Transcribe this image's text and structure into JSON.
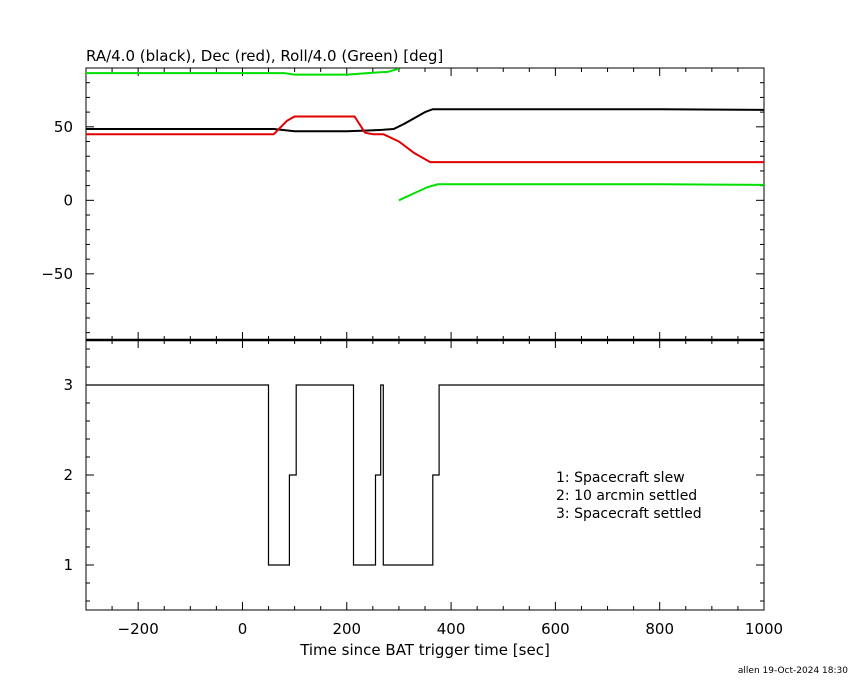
{
  "footer": {
    "credit": "allen 19-Oct-2024 18:30"
  },
  "colors": {
    "ra": "#000000",
    "dec": "#e00000",
    "roll": "#00e000",
    "axis": "#000000",
    "background": "#ffffff"
  },
  "chart_data": [
    {
      "type": "line",
      "title": "RA/4.0 (black), Dec (red), Roll/4.0 (Green) [deg]",
      "xlim": [
        -300,
        1000
      ],
      "ylim": [
        -95,
        90
      ],
      "yticks": [
        -50,
        0,
        50
      ],
      "grid": false,
      "series": [
        {
          "key": "ra",
          "color": "#000000",
          "x": [
            -300,
            60,
            100,
            200,
            240,
            270,
            290,
            310,
            330,
            350,
            365,
            400,
            600,
            800,
            1000
          ],
          "y": [
            48.5,
            48.5,
            47,
            47,
            47.5,
            48,
            48.5,
            52,
            56,
            60,
            62,
            62,
            62,
            62,
            61.5
          ]
        },
        {
          "key": "dec",
          "color": "#e00000",
          "x": [
            -300,
            60,
            85,
            100,
            200,
            215,
            235,
            250,
            270,
            300,
            330,
            360,
            600,
            1000
          ],
          "y": [
            45,
            45,
            54,
            57,
            57,
            57,
            46,
            45,
            45,
            40,
            32,
            26,
            26,
            26
          ]
        },
        {
          "key": "roll-before",
          "color": "#00e000",
          "x": [
            -300,
            80,
            100,
            200,
            240,
            280,
            300
          ],
          "y": [
            86.5,
            86.5,
            85.5,
            85.5,
            86.5,
            87.5,
            89.5
          ]
        },
        {
          "key": "roll-after",
          "color": "#00e000",
          "x": [
            300,
            330,
            355,
            375,
            600,
            800,
            1000
          ],
          "y": [
            0,
            5,
            9,
            11,
            11,
            11,
            10.5
          ]
        }
      ]
    },
    {
      "type": "line",
      "xlabel": "Time since BAT trigger time [sec]",
      "xlim": [
        -300,
        1000
      ],
      "ylim": [
        0.5,
        3.5
      ],
      "xticks": [
        -200,
        0,
        200,
        400,
        600,
        800,
        1000
      ],
      "yticks": [
        1,
        2,
        3
      ],
      "grid": false,
      "legend": [
        "1: Spacecraft slew",
        "2: 10 arcmin settled",
        "3: Spacecraft settled"
      ],
      "legend_position": "right",
      "step_series": {
        "x": [
          -300,
          50,
          50,
          90,
          90,
          103,
          103,
          213,
          213,
          255,
          255,
          265,
          265,
          270,
          270,
          365,
          365,
          377,
          377,
          1000
        ],
        "y": [
          3,
          3,
          1,
          1,
          2,
          2,
          3,
          3,
          1,
          1,
          2,
          2,
          3,
          3,
          1,
          1,
          2,
          2,
          3,
          3
        ]
      }
    }
  ]
}
